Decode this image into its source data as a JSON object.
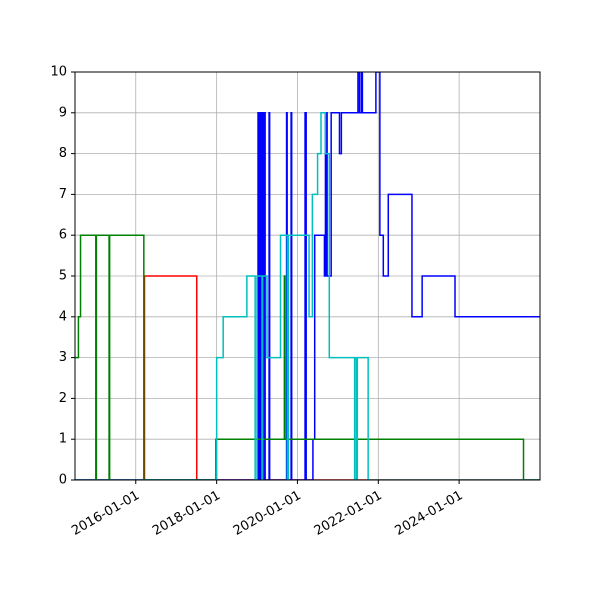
{
  "chart_data": {
    "type": "line",
    "title": "",
    "xlabel": "",
    "ylabel": "",
    "x_type": "date",
    "xlim": [
      "2014-07-01",
      "2026-01-01"
    ],
    "ylim": [
      0,
      10
    ],
    "grid": true,
    "legend": "none",
    "drawstyle": "steps-post",
    "x_ticks": [
      {
        "value": "2016-01-01",
        "label": "2016-01-01"
      },
      {
        "value": "2018-01-01",
        "label": "2018-01-01"
      },
      {
        "value": "2020-01-01",
        "label": "2020-01-01"
      },
      {
        "value": "2022-01-01",
        "label": "2022-01-01"
      },
      {
        "value": "2024-01-01",
        "label": "2024-01-01"
      }
    ],
    "y_ticks": [
      {
        "value": 0,
        "label": "0"
      },
      {
        "value": 1,
        "label": "1"
      },
      {
        "value": 2,
        "label": "2"
      },
      {
        "value": 3,
        "label": "3"
      },
      {
        "value": 4,
        "label": "4"
      },
      {
        "value": 5,
        "label": "5"
      },
      {
        "value": 6,
        "label": "6"
      },
      {
        "value": 7,
        "label": "7"
      },
      {
        "value": 8,
        "label": "8"
      },
      {
        "value": 9,
        "label": "9"
      },
      {
        "value": 10,
        "label": "10"
      }
    ],
    "series": [
      {
        "color": "#ff0000",
        "points": [
          [
            "2014-07-01",
            0
          ],
          [
            "2016-03-15",
            0
          ],
          [
            "2016-03-20",
            5
          ],
          [
            "2017-07-01",
            5
          ],
          [
            "2017-07-05",
            0
          ],
          [
            "2026-01-01",
            0
          ]
        ]
      },
      {
        "color": "#0000ff",
        "points": [
          [
            "2014-07-01",
            0
          ],
          [
            "2019-01-05",
            0
          ],
          [
            "2019-01-10",
            9
          ],
          [
            "2019-01-20",
            0
          ],
          [
            "2019-02-01",
            9
          ],
          [
            "2019-02-10",
            0
          ],
          [
            "2019-02-20",
            9
          ],
          [
            "2019-03-01",
            0
          ],
          [
            "2019-03-05",
            9
          ],
          [
            "2019-03-15",
            0
          ],
          [
            "2019-04-15",
            0
          ],
          [
            "2019-04-20",
            9
          ],
          [
            "2019-04-25",
            0
          ],
          [
            "2019-09-20",
            0
          ],
          [
            "2019-09-25",
            9
          ],
          [
            "2019-09-30",
            0
          ],
          [
            "2019-11-01",
            0
          ],
          [
            "2019-11-05",
            9
          ],
          [
            "2019-11-10",
            0
          ],
          [
            "2020-03-01",
            0
          ],
          [
            "2020-03-10",
            9
          ],
          [
            "2020-03-20",
            0
          ],
          [
            "2020-05-15",
            0
          ],
          [
            "2020-05-20",
            1
          ],
          [
            "2020-06-05",
            6
          ],
          [
            "2020-09-01",
            5
          ],
          [
            "2020-09-10",
            9
          ],
          [
            "2020-09-15",
            5
          ],
          [
            "2020-09-20",
            9
          ],
          [
            "2020-09-25",
            5
          ],
          [
            "2020-11-01",
            9
          ],
          [
            "2021-01-15",
            8
          ],
          [
            "2021-02-01",
            9
          ],
          [
            "2021-07-01",
            10
          ],
          [
            "2021-07-15",
            9
          ],
          [
            "2021-08-01",
            10
          ],
          [
            "2021-08-10",
            9
          ],
          [
            "2021-12-10",
            10
          ],
          [
            "2022-01-15",
            6
          ],
          [
            "2022-02-15",
            5
          ],
          [
            "2022-04-01",
            7
          ],
          [
            "2022-11-01",
            4
          ],
          [
            "2023-02-01",
            5
          ],
          [
            "2023-11-25",
            4
          ],
          [
            "2026-01-01",
            4
          ]
        ]
      },
      {
        "color": "#008000",
        "points": [
          [
            "2014-07-01",
            3
          ],
          [
            "2014-08-01",
            4
          ],
          [
            "2014-08-20",
            6
          ],
          [
            "2015-01-01",
            6
          ],
          [
            "2015-01-05",
            0
          ],
          [
            "2015-01-10",
            6
          ],
          [
            "2015-05-01",
            6
          ],
          [
            "2015-05-05",
            0
          ],
          [
            "2015-05-10",
            6
          ],
          [
            "2016-03-10",
            6
          ],
          [
            "2016-03-14",
            0
          ],
          [
            "2017-12-20",
            0
          ],
          [
            "2017-12-25",
            1
          ],
          [
            "2019-09-01",
            1
          ],
          [
            "2019-09-05",
            5
          ],
          [
            "2019-09-10",
            1
          ],
          [
            "2020-06-15",
            1
          ],
          [
            "2025-08-01",
            1
          ],
          [
            "2025-08-05",
            0
          ],
          [
            "2026-01-01",
            0
          ]
        ]
      },
      {
        "color": "#00bfbf",
        "points": [
          [
            "2014-07-01",
            0
          ],
          [
            "2017-12-28",
            0
          ],
          [
            "2018-01-01",
            3
          ],
          [
            "2018-03-01",
            4
          ],
          [
            "2018-10-01",
            5
          ],
          [
            "2018-12-15",
            0
          ],
          [
            "2019-01-01",
            5
          ],
          [
            "2019-02-15",
            0
          ],
          [
            "2019-02-20",
            5
          ],
          [
            "2019-04-01",
            3
          ],
          [
            "2019-08-01",
            6
          ],
          [
            "2019-10-01",
            0
          ],
          [
            "2019-10-10",
            6
          ],
          [
            "2020-04-15",
            4
          ],
          [
            "2020-05-15",
            7
          ],
          [
            "2020-07-01",
            8
          ],
          [
            "2020-08-01",
            9
          ],
          [
            "2020-09-10",
            8
          ],
          [
            "2020-10-15",
            3
          ],
          [
            "2021-06-01",
            0
          ],
          [
            "2021-06-05",
            3
          ],
          [
            "2021-06-20",
            0
          ],
          [
            "2021-06-25",
            3
          ],
          [
            "2021-10-01",
            0
          ],
          [
            "2026-01-01",
            0
          ]
        ]
      }
    ]
  }
}
